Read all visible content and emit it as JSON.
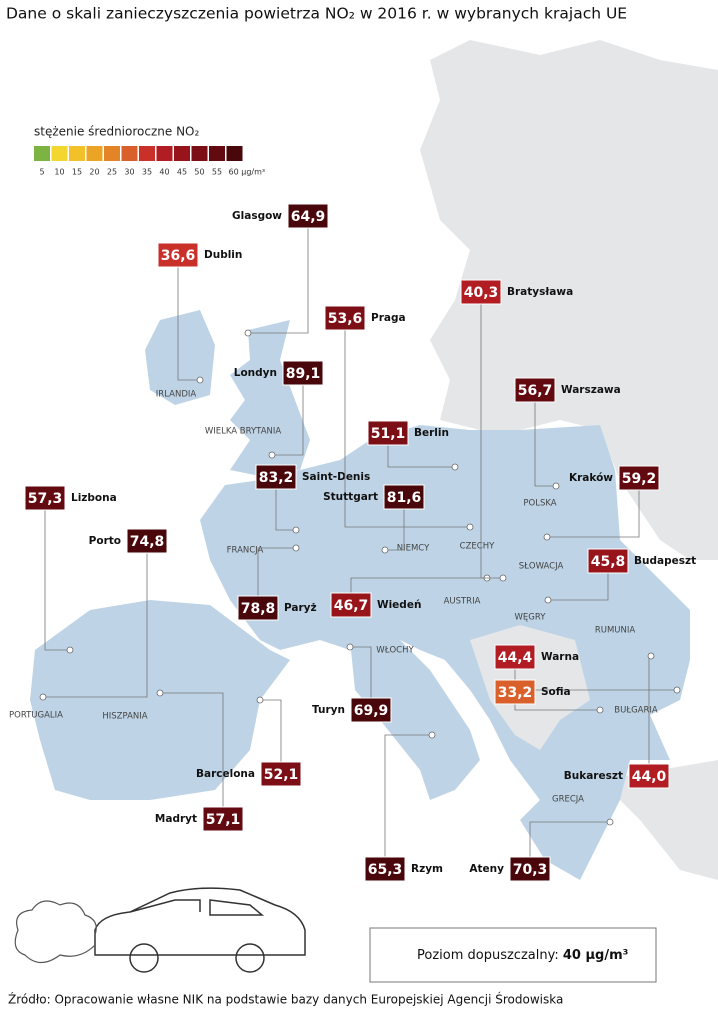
{
  "title": "Dane o skali zanieczyszczenia powietrza NO₂ w 2016 r. w wybranych krajach UE",
  "legend": {
    "title": "stężenie średnioroczne NO₂",
    "ticks": [
      5,
      10,
      15,
      20,
      25,
      30,
      35,
      40,
      45,
      50,
      55,
      {
        "value": 60,
        "label": "60 µg/m³"
      }
    ],
    "colors": [
      "#7cb342",
      "#f4d630",
      "#f2c12a",
      "#eba425",
      "#e38526",
      "#d9602a",
      "#c9302a",
      "#b11d22",
      "#97141b",
      "#7c0e16",
      "#620a10",
      "#4a070b"
    ]
  },
  "countries": [
    "IRLANDIA",
    "WIELKA BRYTANIA",
    "FRANCJA",
    "PORTUGALIA",
    "HISZPANIA",
    "NIEMCY",
    "CZECHY",
    "POLSKA",
    "SŁOWACJA",
    "AUSTRIA",
    "WĘGRY",
    "RUMUNIA",
    "WŁOCHY",
    "BUŁGARIA",
    "GRECJA"
  ],
  "cities": [
    {
      "name": "Glasgow",
      "value": 64.9,
      "value_label": "64,9"
    },
    {
      "name": "Dublin",
      "value": 36.6,
      "value_label": "36,6"
    },
    {
      "name": "Londyn",
      "value": 89.1,
      "value_label": "89,1"
    },
    {
      "name": "Saint-Denis",
      "value": 83.2,
      "value_label": "83,2"
    },
    {
      "name": "Lizbona",
      "value": 57.3,
      "value_label": "57,3"
    },
    {
      "name": "Porto",
      "value": 74.8,
      "value_label": "74,8"
    },
    {
      "name": "Paryż",
      "value": 78.8,
      "value_label": "78,8"
    },
    {
      "name": "Praga",
      "value": 53.6,
      "value_label": "53,6"
    },
    {
      "name": "Berlin",
      "value": 51.1,
      "value_label": "51,1"
    },
    {
      "name": "Stuttgart",
      "value": 81.6,
      "value_label": "81,6"
    },
    {
      "name": "Wiedeń",
      "value": 46.7,
      "value_label": "46,7"
    },
    {
      "name": "Bratysława",
      "value": 40.3,
      "value_label": "40,3"
    },
    {
      "name": "Warszawa",
      "value": 56.7,
      "value_label": "56,7"
    },
    {
      "name": "Kraków",
      "value": 59.2,
      "value_label": "59,2"
    },
    {
      "name": "Budapeszt",
      "value": 45.8,
      "value_label": "45,8"
    },
    {
      "name": "Warna",
      "value": 44.4,
      "value_label": "44,4"
    },
    {
      "name": "Sofia",
      "value": 33.2,
      "value_label": "33,2"
    },
    {
      "name": "Bukareszt",
      "value": 44.0,
      "value_label": "44,0"
    },
    {
      "name": "Turyn",
      "value": 69.9,
      "value_label": "69,9"
    },
    {
      "name": "Barcelona",
      "value": 52.1,
      "value_label": "52,1"
    },
    {
      "name": "Madryt",
      "value": 57.1,
      "value_label": "57,1"
    },
    {
      "name": "Rzym",
      "value": 65.3,
      "value_label": "65,3"
    },
    {
      "name": "Ateny",
      "value": 70.3,
      "value_label": "70,3"
    }
  ],
  "limit": {
    "label": "Poziom dopuszczalny:",
    "value": 40,
    "value_label": "40 µg/m³"
  },
  "source": "Źródło: Opracowanie własne NIK na podstawie bazy danych Europejskiej Agencji Środowiska"
}
